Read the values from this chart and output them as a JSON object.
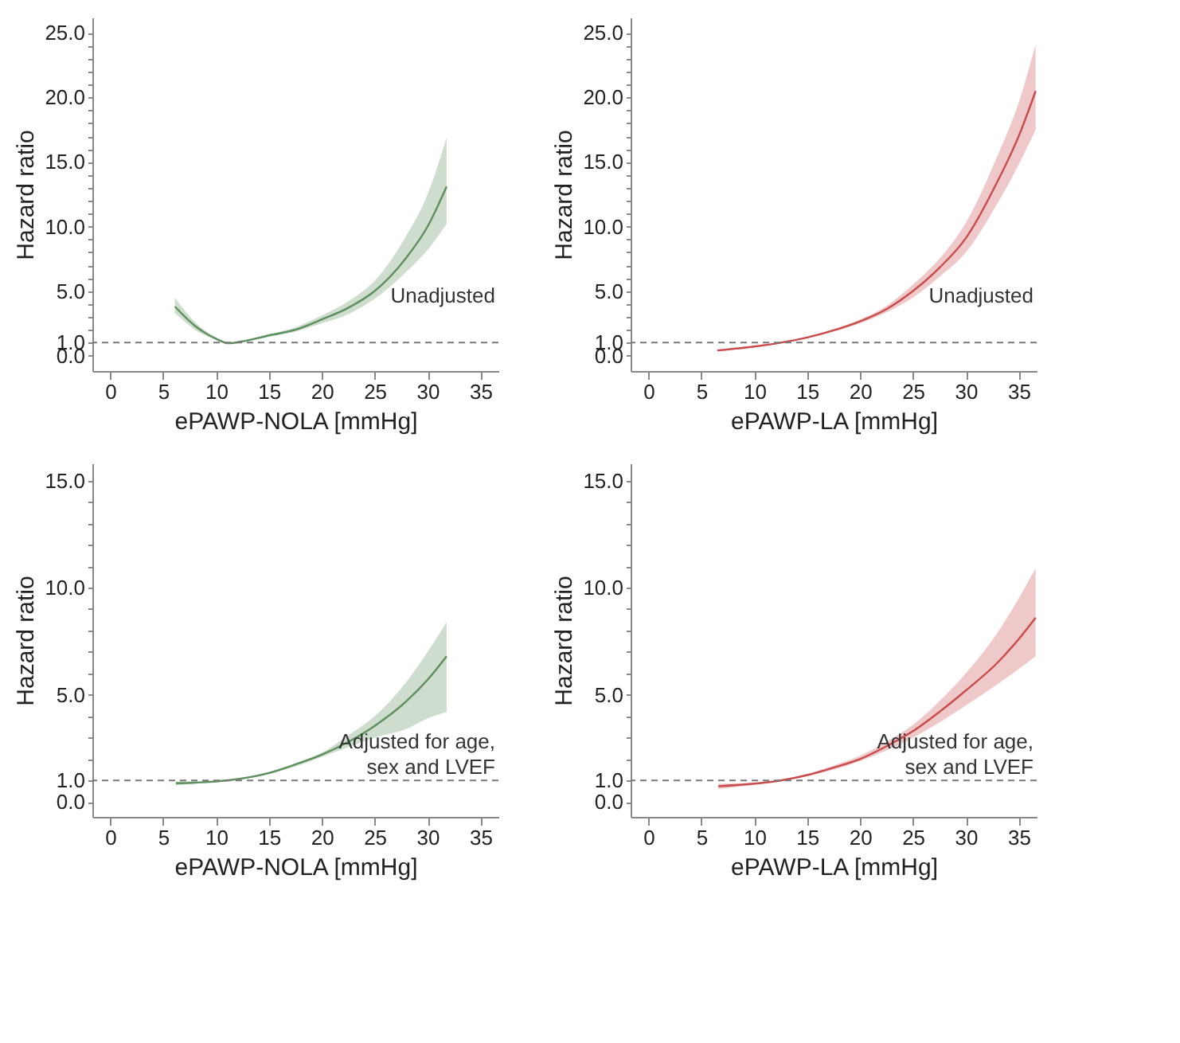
{
  "chart_data": [
    {
      "type": "line",
      "xlabel": "ePAWP-NOLA [mmHg]",
      "ylabel": "Hazard ratio",
      "annotations": [
        "Unadjusted"
      ],
      "xlim": [
        -1.7,
        36.7
      ],
      "xticks": [
        0,
        5,
        10,
        15,
        20,
        25,
        30,
        35
      ],
      "ylim": [
        -1.2,
        26.2
      ],
      "yticks": [
        {
          "value": 0,
          "label": "0.0"
        },
        {
          "value": 1,
          "label": "1.0"
        },
        {
          "value": 2,
          "label": null
        },
        {
          "value": 3,
          "label": null
        },
        {
          "value": 4,
          "label": null
        },
        {
          "value": 5,
          "label": "5.0"
        },
        {
          "value": 6,
          "label": null
        },
        {
          "value": 7,
          "label": null
        },
        {
          "value": 8,
          "label": null
        },
        {
          "value": 9,
          "label": null
        },
        {
          "value": 10,
          "label": "10.0"
        },
        {
          "value": 11,
          "label": null
        },
        {
          "value": 12,
          "label": null
        },
        {
          "value": 13,
          "label": null
        },
        {
          "value": 14,
          "label": null
        },
        {
          "value": 15,
          "label": "15.0"
        },
        {
          "value": 16,
          "label": null
        },
        {
          "value": 17,
          "label": null
        },
        {
          "value": 18,
          "label": null
        },
        {
          "value": 19,
          "label": null
        },
        {
          "value": 20,
          "label": "20.0"
        },
        {
          "value": 21,
          "label": null
        },
        {
          "value": 22,
          "label": null
        },
        {
          "value": 23,
          "label": null
        },
        {
          "value": 24,
          "label": null
        },
        {
          "value": 25,
          "label": "25.0"
        }
      ],
      "grid": false,
      "marker": "none",
      "line_style": "solid",
      "ref_lines": [
        {
          "axis": "y",
          "value": 1,
          "label": null,
          "color": "#777777",
          "line_style": "dashed"
        }
      ],
      "series": [
        {
          "color": "#5e8f5e",
          "x": [
            6.1,
            8,
            10,
            11.2,
            12.5,
            15,
            17.5,
            20,
            22.5,
            25,
            28,
            30,
            31.8
          ],
          "values": [
            3.8,
            2.3,
            1.3,
            0.95,
            1.1,
            1.56,
            2.0,
            2.8,
            3.7,
            5.0,
            7.6,
            10.0,
            13.1
          ],
          "lower": [
            3.3,
            2.0,
            1.2,
            0.9,
            1.05,
            1.45,
            1.85,
            2.5,
            3.2,
            4.4,
            6.5,
            8.2,
            10.2
          ],
          "upper": [
            4.5,
            2.6,
            1.4,
            1.0,
            1.15,
            1.65,
            2.2,
            3.1,
            4.2,
            5.8,
            9.3,
            12.5,
            16.9
          ]
        }
      ]
    },
    {
      "type": "line",
      "xlabel": "ePAWP-LA [mmHg]",
      "ylabel": "Hazard ratio",
      "annotations": [
        "Unadjusted"
      ],
      "xlim": [
        -1.7,
        36.7
      ],
      "xticks": [
        0,
        5,
        10,
        15,
        20,
        25,
        30,
        35
      ],
      "ylim": [
        -1.2,
        26.2
      ],
      "yticks": [
        {
          "value": 0,
          "label": "0.0"
        },
        {
          "value": 1,
          "label": "1.0"
        },
        {
          "value": 2,
          "label": null
        },
        {
          "value": 3,
          "label": null
        },
        {
          "value": 4,
          "label": null
        },
        {
          "value": 5,
          "label": "5.0"
        },
        {
          "value": 6,
          "label": null
        },
        {
          "value": 7,
          "label": null
        },
        {
          "value": 8,
          "label": null
        },
        {
          "value": 9,
          "label": null
        },
        {
          "value": 10,
          "label": "10.0"
        },
        {
          "value": 11,
          "label": null
        },
        {
          "value": 12,
          "label": null
        },
        {
          "value": 13,
          "label": null
        },
        {
          "value": 14,
          "label": null
        },
        {
          "value": 15,
          "label": "15.0"
        },
        {
          "value": 16,
          "label": null
        },
        {
          "value": 17,
          "label": null
        },
        {
          "value": 18,
          "label": null
        },
        {
          "value": 19,
          "label": null
        },
        {
          "value": 20,
          "label": "20.0"
        },
        {
          "value": 21,
          "label": null
        },
        {
          "value": 22,
          "label": null
        },
        {
          "value": 23,
          "label": null
        },
        {
          "value": 24,
          "label": null
        },
        {
          "value": 25,
          "label": "25.0"
        }
      ],
      "grid": false,
      "marker": "none",
      "line_style": "solid",
      "ref_lines": [
        {
          "axis": "y",
          "value": 1,
          "label": null,
          "color": "#777777",
          "line_style": "dashed"
        }
      ],
      "series": [
        {
          "color": "#c94c4c",
          "x": [
            6.5,
            10,
            12.5,
            15,
            17.5,
            20,
            22.5,
            25,
            27.5,
            30,
            33,
            35,
            36.6
          ],
          "values": [
            0.4,
            0.7,
            1.0,
            1.4,
            1.95,
            2.65,
            3.6,
            5.0,
            6.8,
            9.1,
            13.5,
            17.0,
            20.5
          ],
          "lower": [
            0.35,
            0.65,
            0.95,
            1.35,
            1.85,
            2.5,
            3.35,
            4.5,
            6.1,
            8.0,
            11.8,
            14.8,
            17.5
          ],
          "upper": [
            0.45,
            0.75,
            1.05,
            1.45,
            2.05,
            2.8,
            3.85,
            5.5,
            7.5,
            10.3,
            15.5,
            19.6,
            24.1
          ]
        }
      ]
    },
    {
      "type": "line",
      "xlabel": "ePAWP-NOLA [mmHg]",
      "ylabel": "Hazard ratio",
      "annotations": [
        "Adjusted for age,\nsex and LVEF"
      ],
      "xlim": [
        -1.7,
        36.7
      ],
      "xticks": [
        0,
        5,
        10,
        15,
        20,
        25,
        30,
        35
      ],
      "ylim": [
        -0.7,
        15.8
      ],
      "yticks": [
        {
          "value": 0,
          "label": "0.0"
        },
        {
          "value": 1,
          "label": "1.0"
        },
        {
          "value": 2,
          "label": null
        },
        {
          "value": 3,
          "label": null
        },
        {
          "value": 4,
          "label": null
        },
        {
          "value": 5,
          "label": "5.0"
        },
        {
          "value": 6,
          "label": null
        },
        {
          "value": 7,
          "label": null
        },
        {
          "value": 8,
          "label": null
        },
        {
          "value": 9,
          "label": null
        },
        {
          "value": 10,
          "label": "10.0"
        },
        {
          "value": 11,
          "label": null
        },
        {
          "value": 12,
          "label": null
        },
        {
          "value": 13,
          "label": null
        },
        {
          "value": 14,
          "label": null
        },
        {
          "value": 15,
          "label": "15.0"
        }
      ],
      "grid": false,
      "marker": "none",
      "line_style": "solid",
      "ref_lines": [
        {
          "axis": "y",
          "value": 1,
          "label": null,
          "color": "#777777",
          "line_style": "dashed"
        }
      ],
      "series": [
        {
          "color": "#5e8f5e",
          "x": [
            6.2,
            8,
            11,
            15,
            17.5,
            20,
            22.5,
            25,
            28,
            30,
            31.8
          ],
          "values": [
            0.87,
            0.9,
            1.0,
            1.35,
            1.75,
            2.2,
            2.8,
            3.55,
            4.7,
            5.7,
            6.8
          ],
          "lower": [
            0.77,
            0.85,
            0.97,
            1.3,
            1.65,
            2.1,
            2.55,
            3.0,
            3.4,
            3.9,
            4.2
          ],
          "upper": [
            0.96,
            0.95,
            1.03,
            1.4,
            1.8,
            2.3,
            3.1,
            4.0,
            5.6,
            7.0,
            8.4
          ]
        }
      ]
    },
    {
      "type": "line",
      "xlabel": "ePAWP-LA [mmHg]",
      "ylabel": "Hazard ratio",
      "annotations": [
        "Adjusted for age,\nsex and LVEF"
      ],
      "xlim": [
        -1.7,
        36.7
      ],
      "xticks": [
        0,
        5,
        10,
        15,
        20,
        25,
        30,
        35
      ],
      "ylim": [
        -0.7,
        15.8
      ],
      "yticks": [
        {
          "value": 0,
          "label": "0.0"
        },
        {
          "value": 1,
          "label": "1.0"
        },
        {
          "value": 2,
          "label": null
        },
        {
          "value": 3,
          "label": null
        },
        {
          "value": 4,
          "label": null
        },
        {
          "value": 5,
          "label": "5.0"
        },
        {
          "value": 6,
          "label": null
        },
        {
          "value": 7,
          "label": null
        },
        {
          "value": 8,
          "label": null
        },
        {
          "value": 9,
          "label": null
        },
        {
          "value": 10,
          "label": "10.0"
        },
        {
          "value": 11,
          "label": null
        },
        {
          "value": 12,
          "label": null
        },
        {
          "value": 13,
          "label": null
        },
        {
          "value": 14,
          "label": null
        },
        {
          "value": 15,
          "label": "15.0"
        }
      ],
      "grid": false,
      "marker": "none",
      "line_style": "solid",
      "ref_lines": [
        {
          "axis": "y",
          "value": 1,
          "label": null,
          "color": "#777777",
          "line_style": "dashed"
        }
      ],
      "series": [
        {
          "color": "#c94c4c",
          "x": [
            6.6,
            10,
            12.5,
            15,
            17.5,
            20,
            22.5,
            25,
            27.5,
            30,
            33,
            35,
            36.6
          ],
          "values": [
            0.73,
            0.85,
            1.0,
            1.25,
            1.6,
            2.0,
            2.6,
            3.3,
            4.2,
            5.2,
            6.5,
            7.6,
            8.6
          ],
          "lower": [
            0.6,
            0.8,
            0.97,
            1.2,
            1.5,
            1.9,
            2.4,
            3.0,
            3.7,
            4.5,
            5.5,
            6.2,
            6.8
          ],
          "upper": [
            0.85,
            0.9,
            1.03,
            1.3,
            1.7,
            2.15,
            2.8,
            3.6,
            4.7,
            6.0,
            7.9,
            9.5,
            10.9
          ]
        }
      ]
    }
  ]
}
